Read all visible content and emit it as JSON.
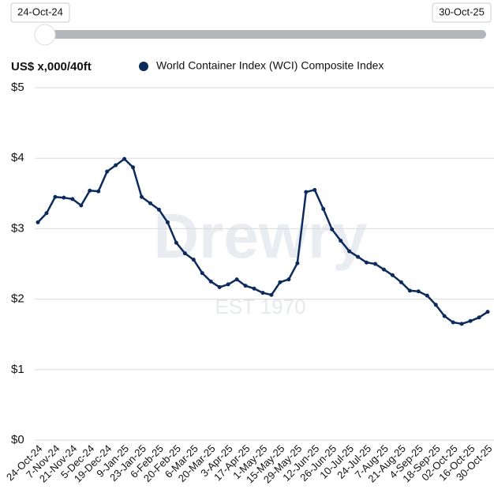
{
  "chart_data": {
    "type": "line",
    "range_start": "24-Oct-24",
    "range_end": "30-Oct-25",
    "ylabel": "US$ x,000/40ft",
    "watermark": [
      "Drewry",
      "EST 1970"
    ],
    "categories": [
      "24-Oct-24",
      null,
      "7-Nov-24",
      null,
      "21-Nov-24",
      null,
      "5-Dec-24",
      null,
      "19-Dec-24",
      null,
      "9-Jan-25",
      null,
      "23-Jan-25",
      null,
      "6-Feb-25",
      null,
      "20-Feb-25",
      null,
      "6-Mar-25",
      null,
      "20-Mar-25",
      null,
      "3-Apr-25",
      null,
      "17-Apr-25",
      null,
      "1-May-25",
      null,
      "15-May-25",
      null,
      "29-May-25",
      null,
      "12-Jun-25",
      null,
      "26-Jun-25",
      null,
      "10-Jul-25",
      null,
      "24-Jul-25",
      null,
      "7-Aug-25",
      null,
      "21-Aug-25",
      null,
      "4-Sep-25",
      null,
      "18-Sep-25",
      null,
      "02-Oct-25",
      null,
      "16-Oct-25",
      null,
      "30-Oct-25"
    ],
    "series": [
      {
        "name": "World Container Index (WCI) Composite Index",
        "color": "#0d2a5c",
        "values": [
          3.09,
          3.22,
          3.45,
          3.44,
          3.42,
          3.33,
          3.54,
          3.53,
          3.81,
          3.9,
          3.99,
          3.87,
          3.45,
          3.36,
          3.27,
          3.09,
          2.8,
          2.65,
          2.56,
          2.37,
          2.25,
          2.17,
          2.21,
          2.28,
          2.19,
          2.15,
          2.09,
          2.06,
          2.24,
          2.28,
          2.51,
          3.52,
          3.55,
          3.28,
          2.99,
          2.83,
          2.68,
          2.6,
          2.52,
          2.5,
          2.42,
          2.34,
          2.24,
          2.12,
          2.11,
          2.05,
          1.92,
          1.76,
          1.67,
          1.65,
          1.69,
          1.74,
          1.82
        ]
      }
    ],
    "ylim": [
      0,
      5
    ],
    "yticks": [
      {
        "value": 0,
        "label": "$0"
      },
      {
        "value": 1,
        "label": "$1"
      },
      {
        "value": 2,
        "label": "$2"
      },
      {
        "value": 3,
        "label": "$3"
      },
      {
        "value": 4,
        "label": "$4"
      },
      {
        "value": 5,
        "label": "$5"
      }
    ],
    "grid": true
  }
}
